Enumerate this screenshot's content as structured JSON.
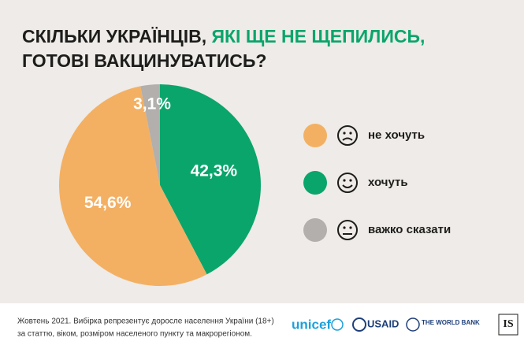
{
  "chart_data": {
    "type": "pie",
    "title": [
      "СКІЛЬКИ УКРАЇНЦІВ,",
      "ЯКІ ЩЕ НЕ ЩЕПИЛИСЬ,",
      "ГОТОВІ ВАКЦИНУВАТИСЬ?"
    ],
    "categories": [
      "не хочуть",
      "хочуть",
      "важко сказати"
    ],
    "values": [
      54.6,
      42.3,
      3.1
    ],
    "value_labels": [
      "54,6%",
      "42,3%",
      "3,1%"
    ],
    "colors": [
      "#f3b063",
      "#0aa56b",
      "#b2afac"
    ]
  },
  "footer": {
    "note": [
      "Жовтень 2021. Вибірка репрезентує доросле населення України (18+)",
      "за статтю, віком, розміром населеного пункту та макрорегіоном."
    ],
    "logos": [
      "unicef",
      "USAID",
      "THE WORLD BANK",
      "IS"
    ]
  }
}
